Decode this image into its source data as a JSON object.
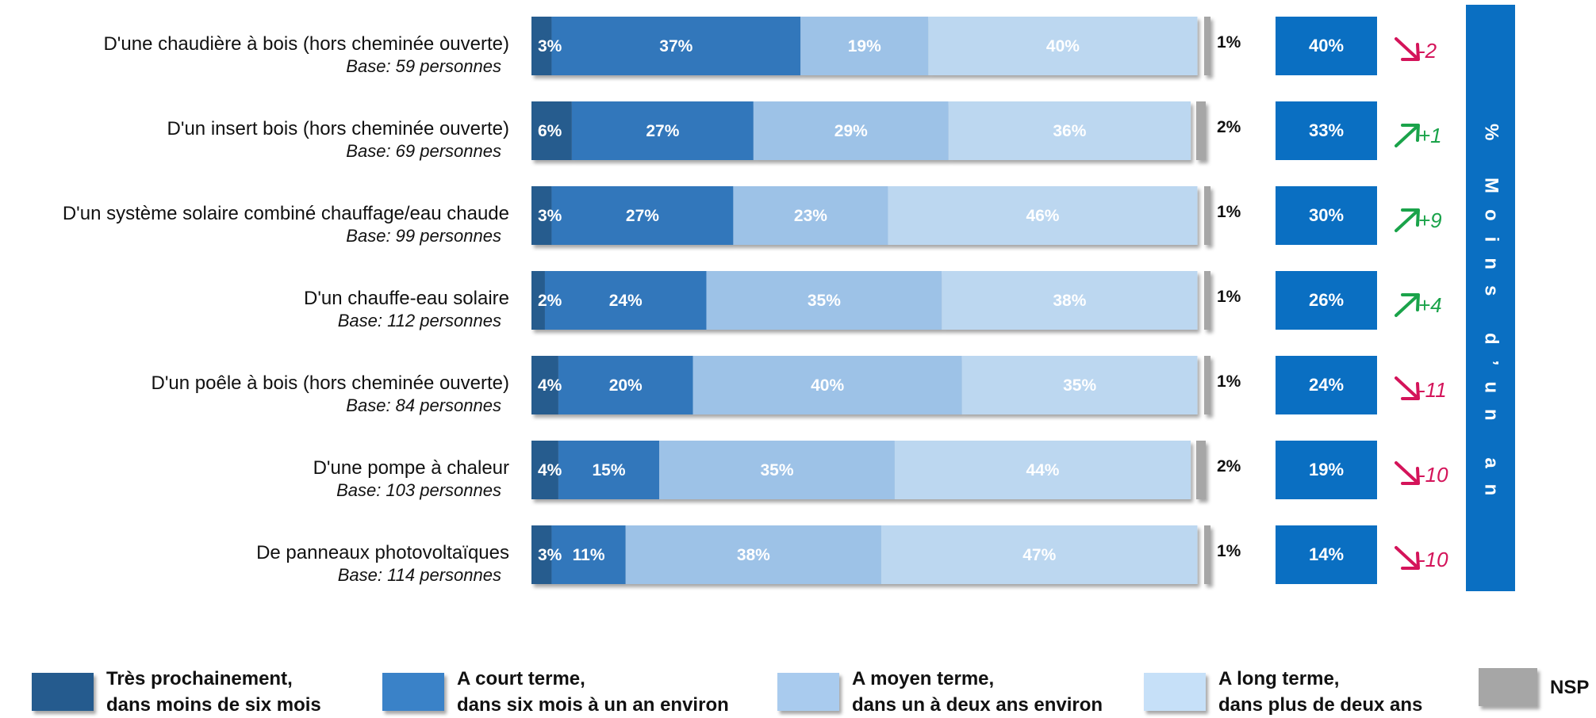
{
  "chart_data": {
    "type": "bar",
    "orientation": "horizontal",
    "stacked": true,
    "categories": [
      "D'une chaudière à bois (hors cheminée ouverte)",
      "D'un insert bois (hors cheminée ouverte)",
      "D'un système solaire combiné chauffage/eau chaude",
      "D'un chauffe-eau solaire",
      "D'un poêle à bois (hors cheminée ouverte)",
      "D'une pompe à chaleur",
      "De panneaux photovoltaïques"
    ],
    "bases": [
      "Base: 59 personnes",
      "Base: 69 personnes",
      "Base: 99 personnes",
      "Base: 112 personnes",
      "Base: 84 personnes",
      "Base: 103 personnes",
      "Base: 114 personnes"
    ],
    "series": [
      {
        "name": "Très prochainement, dans moins de six mois",
        "label_line1": "Très prochainement,",
        "label_line2": "dans moins de six mois",
        "color": "#255b8e",
        "values": [
          3,
          6,
          3,
          2,
          4,
          4,
          3
        ],
        "labels": [
          "3%",
          "6%",
          "3%",
          "2%",
          "4%",
          "4%",
          "3%"
        ]
      },
      {
        "name": "A court terme, dans six mois à un an environ",
        "label_line1": "A court terme,",
        "label_line2": "dans six mois à un an environ",
        "color": "#3177bb",
        "values": [
          37,
          27,
          27,
          24,
          20,
          15,
          11
        ],
        "labels": [
          "37%",
          "27%",
          "27%",
          "24%",
          "20%",
          "15%",
          "11%"
        ]
      },
      {
        "name": "A moyen terme, dans un à deux ans environ",
        "label_line1": "A moyen terme,",
        "label_line2": "dans un à deux ans environ",
        "color": "#9dc2e7",
        "values": [
          19,
          29,
          23,
          35,
          40,
          35,
          38
        ],
        "labels": [
          "19%",
          "29%",
          "23%",
          "35%",
          "40%",
          "35%",
          "38%"
        ]
      },
      {
        "name": "A long terme, dans plus de deux ans",
        "label_line1": "A long terme,",
        "label_line2": "dans plus de deux ans",
        "color": "#bcd7f0",
        "values": [
          40,
          36,
          46,
          38,
          35,
          44,
          47
        ],
        "labels": [
          "40%",
          "36%",
          "46%",
          "38%",
          "35%",
          "44%",
          "47%"
        ]
      },
      {
        "name": "NSP",
        "label_line1": "NSP",
        "label_line2": "",
        "color": "#a6a6a6",
        "values": [
          1,
          2,
          1,
          1,
          1,
          2,
          1
        ],
        "labels": [
          "1%",
          "2%",
          "1%",
          "1%",
          "1%",
          "2%",
          "1%"
        ]
      }
    ],
    "moins_un_an": {
      "title": "% Moins d’un an",
      "values": [
        40,
        33,
        30,
        26,
        24,
        19,
        14
      ],
      "labels": [
        "40%",
        "33%",
        "30%",
        "26%",
        "24%",
        "19%",
        "14%"
      ],
      "color": "#0a6fc2"
    },
    "evolution": {
      "labels": [
        "-2",
        "+1",
        "+9",
        "+4",
        "-11",
        "-10",
        "-10"
      ],
      "directions": [
        "down",
        "up",
        "up",
        "up",
        "down",
        "down",
        "down"
      ],
      "up_color": "#1aa34a",
      "down_color": "#d4145a"
    },
    "xlim": [
      0,
      100
    ],
    "legend_position": "bottom"
  }
}
